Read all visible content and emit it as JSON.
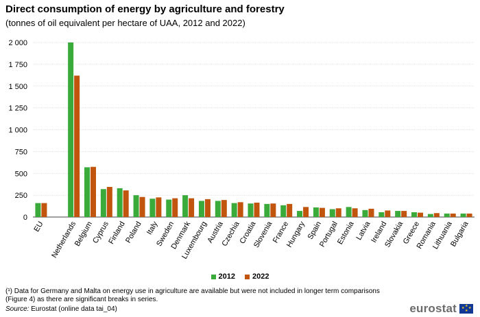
{
  "title": "Direct consumption of energy by agriculture and forestry",
  "subtitle": "(tonnes of oil equivalent per hectare of UAA,  2012 and 2022)",
  "footnote": "(¹) Data for Germany and Malta on energy use in agriculture are available but were not included in longer term comparisons (Figure 4) as there are significant breaks in series.",
  "source_label": "Source:",
  "source_text": " Eurostat (online data tai_04)",
  "logo_text": "eurostat",
  "colors": {
    "series_2012": "#3aab3a",
    "series_2022": "#c1550e",
    "grid": "#d9d9d9"
  },
  "chart_data": {
    "type": "bar",
    "categories": [
      "EU",
      "",
      "Netherlands",
      "Belgium",
      "Cyprus",
      "Finland",
      "Poland",
      "Italy",
      "Sweden",
      "Denmark",
      "Luxembourg",
      "Austria",
      "Czechia",
      "Croatia",
      "Slovenia",
      "France",
      "Hungary",
      "Spain",
      "Portugal",
      "Estonia",
      "Latvia",
      "Ireland",
      "Slovakia",
      "Greece",
      "Romania",
      "Lithuania",
      "Bulgaria"
    ],
    "series": [
      {
        "name": "2012",
        "values": [
          160,
          null,
          2000,
          570,
          320,
          330,
          250,
          210,
          200,
          250,
          185,
          185,
          160,
          155,
          150,
          135,
          70,
          110,
          90,
          115,
          80,
          55,
          70,
          55,
          35,
          40,
          40
        ]
      },
      {
        "name": "2022",
        "values": [
          160,
          null,
          1620,
          575,
          345,
          305,
          230,
          225,
          215,
          215,
          205,
          195,
          170,
          165,
          155,
          150,
          115,
          105,
          100,
          100,
          95,
          75,
          70,
          50,
          45,
          40,
          40
        ]
      }
    ],
    "yticks": [
      "0",
      "250",
      "500",
      "750",
      "1 000",
      "1 250",
      "1 500",
      "1 750",
      "2 000"
    ],
    "ylim": [
      0,
      2000
    ],
    "grid": true,
    "legend_position": "bottom"
  }
}
